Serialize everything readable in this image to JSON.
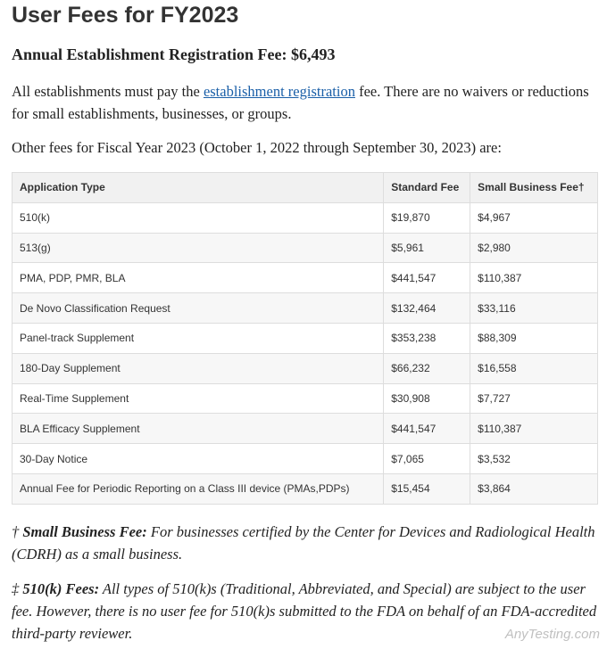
{
  "header": {
    "title": "User Fees for FY2023"
  },
  "subtitle": "Annual Establishment Registration Fee: $6,493",
  "intro": {
    "before": "All establishments must pay the ",
    "link": "establishment registration",
    "after": " fee. There are no waivers or reductions for small establishments, businesses, or groups."
  },
  "other_fees": "Other fees for Fiscal Year 2023 (October 1, 2022 through September 30, 2023) are:",
  "table": {
    "columns": [
      "Application Type",
      "Standard Fee",
      "Small Business Fee†"
    ],
    "rows": [
      [
        "510(k)",
        "$19,870",
        "$4,967"
      ],
      [
        "513(g)",
        "$5,961",
        "$2,980"
      ],
      [
        "PMA, PDP, PMR, BLA",
        "$441,547",
        "$110,387"
      ],
      [
        "De Novo Classification Request",
        "$132,464",
        "$33,116"
      ],
      [
        "Panel-track Supplement",
        "$353,238",
        "$88,309"
      ],
      [
        "180-Day Supplement",
        "$66,232",
        "$16,558"
      ],
      [
        "Real-Time Supplement",
        "$30,908",
        "$7,727"
      ],
      [
        "BLA Efficacy Supplement",
        "$441,547",
        "$110,387"
      ],
      [
        "30-Day Notice",
        "$7,065",
        "$3,532"
      ],
      [
        "Annual Fee for Periodic Reporting on a Class III device (PMAs,PDPs)",
        "$15,454",
        "$3,864"
      ]
    ]
  },
  "footnotes": [
    {
      "symbol": "†",
      "term": "Small Business Fee:",
      "text": " For businesses certified by the Center for Devices and Radiological Health (CDRH) as a small business."
    },
    {
      "symbol": "‡",
      "term": "510(k) Fees:",
      "text": " All types of 510(k)s (Traditional, Abbreviated, and Special) are subject to the user fee. However, there is no user fee for 510(k)s submitted to the FDA on behalf of an FDA-accredited third-party reviewer."
    }
  ],
  "watermark": "AnyTesting.com"
}
